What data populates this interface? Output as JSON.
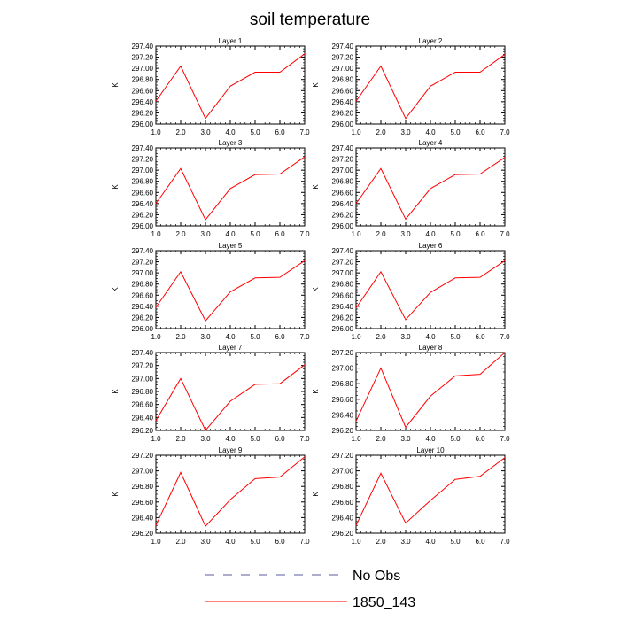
{
  "title": "soil temperature",
  "legend": [
    {
      "label": "No Obs",
      "color": "#5a5a9c",
      "style": "dashed"
    },
    {
      "label": "1850_143",
      "color": "#ff0000",
      "style": "solid"
    }
  ],
  "chart_data": [
    {
      "type": "line",
      "title": "Layer 1",
      "ylabel": "K",
      "x": [
        1,
        2,
        3,
        4,
        5,
        6,
        7
      ],
      "xlim": [
        1.0,
        7.0
      ],
      "ylim": [
        296.0,
        297.4
      ],
      "yticks": [
        "296.00",
        "296.20",
        "296.40",
        "296.60",
        "296.80",
        "297.00",
        "297.20",
        "297.40"
      ],
      "xticks": [
        "1.0",
        "2.0",
        "3.0",
        "4.0",
        "5.0",
        "6.0",
        "7.0"
      ],
      "series": [
        {
          "name": "1850_143",
          "values": [
            296.41,
            297.04,
            296.1,
            296.68,
            296.93,
            296.93,
            297.26
          ]
        }
      ]
    },
    {
      "type": "line",
      "title": "Layer 2",
      "ylabel": "K",
      "x": [
        1,
        2,
        3,
        4,
        5,
        6,
        7
      ],
      "xlim": [
        1.0,
        7.0
      ],
      "ylim": [
        296.0,
        297.4
      ],
      "yticks": [
        "296.00",
        "296.20",
        "296.40",
        "296.60",
        "296.80",
        "297.00",
        "297.20",
        "297.40"
      ],
      "xticks": [
        "1.0",
        "2.0",
        "3.0",
        "4.0",
        "5.0",
        "6.0",
        "7.0"
      ],
      "series": [
        {
          "name": "1850_143",
          "values": [
            296.41,
            297.04,
            296.1,
            296.68,
            296.93,
            296.93,
            297.25
          ]
        }
      ]
    },
    {
      "type": "line",
      "title": "Layer 3",
      "ylabel": "K",
      "x": [
        1,
        2,
        3,
        4,
        5,
        6,
        7
      ],
      "xlim": [
        1.0,
        7.0
      ],
      "ylim": [
        296.0,
        297.4
      ],
      "yticks": [
        "296.00",
        "296.20",
        "296.40",
        "296.60",
        "296.80",
        "297.00",
        "297.20",
        "297.40"
      ],
      "xticks": [
        "1.0",
        "2.0",
        "3.0",
        "4.0",
        "5.0",
        "6.0",
        "7.0"
      ],
      "series": [
        {
          "name": "1850_143",
          "values": [
            296.4,
            297.03,
            296.11,
            296.67,
            296.92,
            296.93,
            297.24
          ]
        }
      ]
    },
    {
      "type": "line",
      "title": "Layer 4",
      "ylabel": "K",
      "x": [
        1,
        2,
        3,
        4,
        5,
        6,
        7
      ],
      "xlim": [
        1.0,
        7.0
      ],
      "ylim": [
        296.0,
        297.4
      ],
      "yticks": [
        "296.00",
        "296.20",
        "296.40",
        "296.60",
        "296.80",
        "297.00",
        "297.20",
        "297.40"
      ],
      "xticks": [
        "1.0",
        "2.0",
        "3.0",
        "4.0",
        "5.0",
        "6.0",
        "7.0"
      ],
      "series": [
        {
          "name": "1850_143",
          "values": [
            296.4,
            297.03,
            296.12,
            296.67,
            296.92,
            296.93,
            297.23
          ]
        }
      ]
    },
    {
      "type": "line",
      "title": "Layer 5",
      "ylabel": "K",
      "x": [
        1,
        2,
        3,
        4,
        5,
        6,
        7
      ],
      "xlim": [
        1.0,
        7.0
      ],
      "ylim": [
        296.0,
        297.4
      ],
      "yticks": [
        "296.00",
        "296.20",
        "296.40",
        "296.60",
        "296.80",
        "297.00",
        "297.20",
        "297.40"
      ],
      "xticks": [
        "1.0",
        "2.0",
        "3.0",
        "4.0",
        "5.0",
        "6.0",
        "7.0"
      ],
      "series": [
        {
          "name": "1850_143",
          "values": [
            296.38,
            297.02,
            296.14,
            296.66,
            296.91,
            296.92,
            297.22
          ]
        }
      ]
    },
    {
      "type": "line",
      "title": "Layer 6",
      "ylabel": "K",
      "x": [
        1,
        2,
        3,
        4,
        5,
        6,
        7
      ],
      "xlim": [
        1.0,
        7.0
      ],
      "ylim": [
        296.0,
        297.4
      ],
      "yticks": [
        "296.00",
        "296.20",
        "296.40",
        "296.60",
        "296.80",
        "297.00",
        "297.20",
        "297.40"
      ],
      "xticks": [
        "1.0",
        "2.0",
        "3.0",
        "4.0",
        "5.0",
        "6.0",
        "7.0"
      ],
      "series": [
        {
          "name": "1850_143",
          "values": [
            296.37,
            297.02,
            296.16,
            296.65,
            296.91,
            296.92,
            297.22
          ]
        }
      ]
    },
    {
      "type": "line",
      "title": "Layer 7",
      "ylabel": "K",
      "x": [
        1,
        2,
        3,
        4,
        5,
        6,
        7
      ],
      "xlim": [
        1.0,
        7.0
      ],
      "ylim": [
        296.2,
        297.4
      ],
      "yticks": [
        "296.20",
        "296.40",
        "296.60",
        "296.80",
        "297.00",
        "297.20",
        "297.40"
      ],
      "xticks": [
        "1.0",
        "2.0",
        "3.0",
        "4.0",
        "5.0",
        "6.0",
        "7.0"
      ],
      "series": [
        {
          "name": "1850_143",
          "values": [
            296.35,
            297.0,
            296.2,
            296.65,
            296.91,
            296.92,
            297.21
          ]
        }
      ]
    },
    {
      "type": "line",
      "title": "Layer 8",
      "ylabel": "K",
      "x": [
        1,
        2,
        3,
        4,
        5,
        6,
        7
      ],
      "xlim": [
        1.0,
        7.0
      ],
      "ylim": [
        296.2,
        297.2
      ],
      "yticks": [
        "296.20",
        "296.40",
        "296.60",
        "296.80",
        "297.00",
        "297.20"
      ],
      "xticks": [
        "1.0",
        "2.0",
        "3.0",
        "4.0",
        "5.0",
        "6.0",
        "7.0"
      ],
      "series": [
        {
          "name": "1850_143",
          "values": [
            296.32,
            297.0,
            296.24,
            296.64,
            296.9,
            296.92,
            297.2
          ]
        }
      ]
    },
    {
      "type": "line",
      "title": "Layer 9",
      "ylabel": "K",
      "x": [
        1,
        2,
        3,
        4,
        5,
        6,
        7
      ],
      "xlim": [
        1.0,
        7.0
      ],
      "ylim": [
        296.2,
        297.2
      ],
      "yticks": [
        "296.20",
        "296.40",
        "296.60",
        "296.80",
        "297.00",
        "297.20"
      ],
      "xticks": [
        "1.0",
        "2.0",
        "3.0",
        "4.0",
        "5.0",
        "6.0",
        "7.0"
      ],
      "series": [
        {
          "name": "1850_143",
          "values": [
            296.3,
            296.98,
            296.29,
            296.63,
            296.9,
            296.92,
            297.18
          ]
        }
      ]
    },
    {
      "type": "line",
      "title": "Layer 10",
      "ylabel": "K",
      "x": [
        1,
        2,
        3,
        4,
        5,
        6,
        7
      ],
      "xlim": [
        1.0,
        7.0
      ],
      "ylim": [
        296.2,
        297.2
      ],
      "yticks": [
        "296.20",
        "296.40",
        "296.60",
        "296.80",
        "297.00",
        "297.20"
      ],
      "xticks": [
        "1.0",
        "2.0",
        "3.0",
        "4.0",
        "5.0",
        "6.0",
        "7.0"
      ],
      "series": [
        {
          "name": "1850_143",
          "values": [
            296.3,
            296.97,
            296.33,
            296.62,
            296.89,
            296.93,
            297.17
          ]
        }
      ]
    }
  ]
}
